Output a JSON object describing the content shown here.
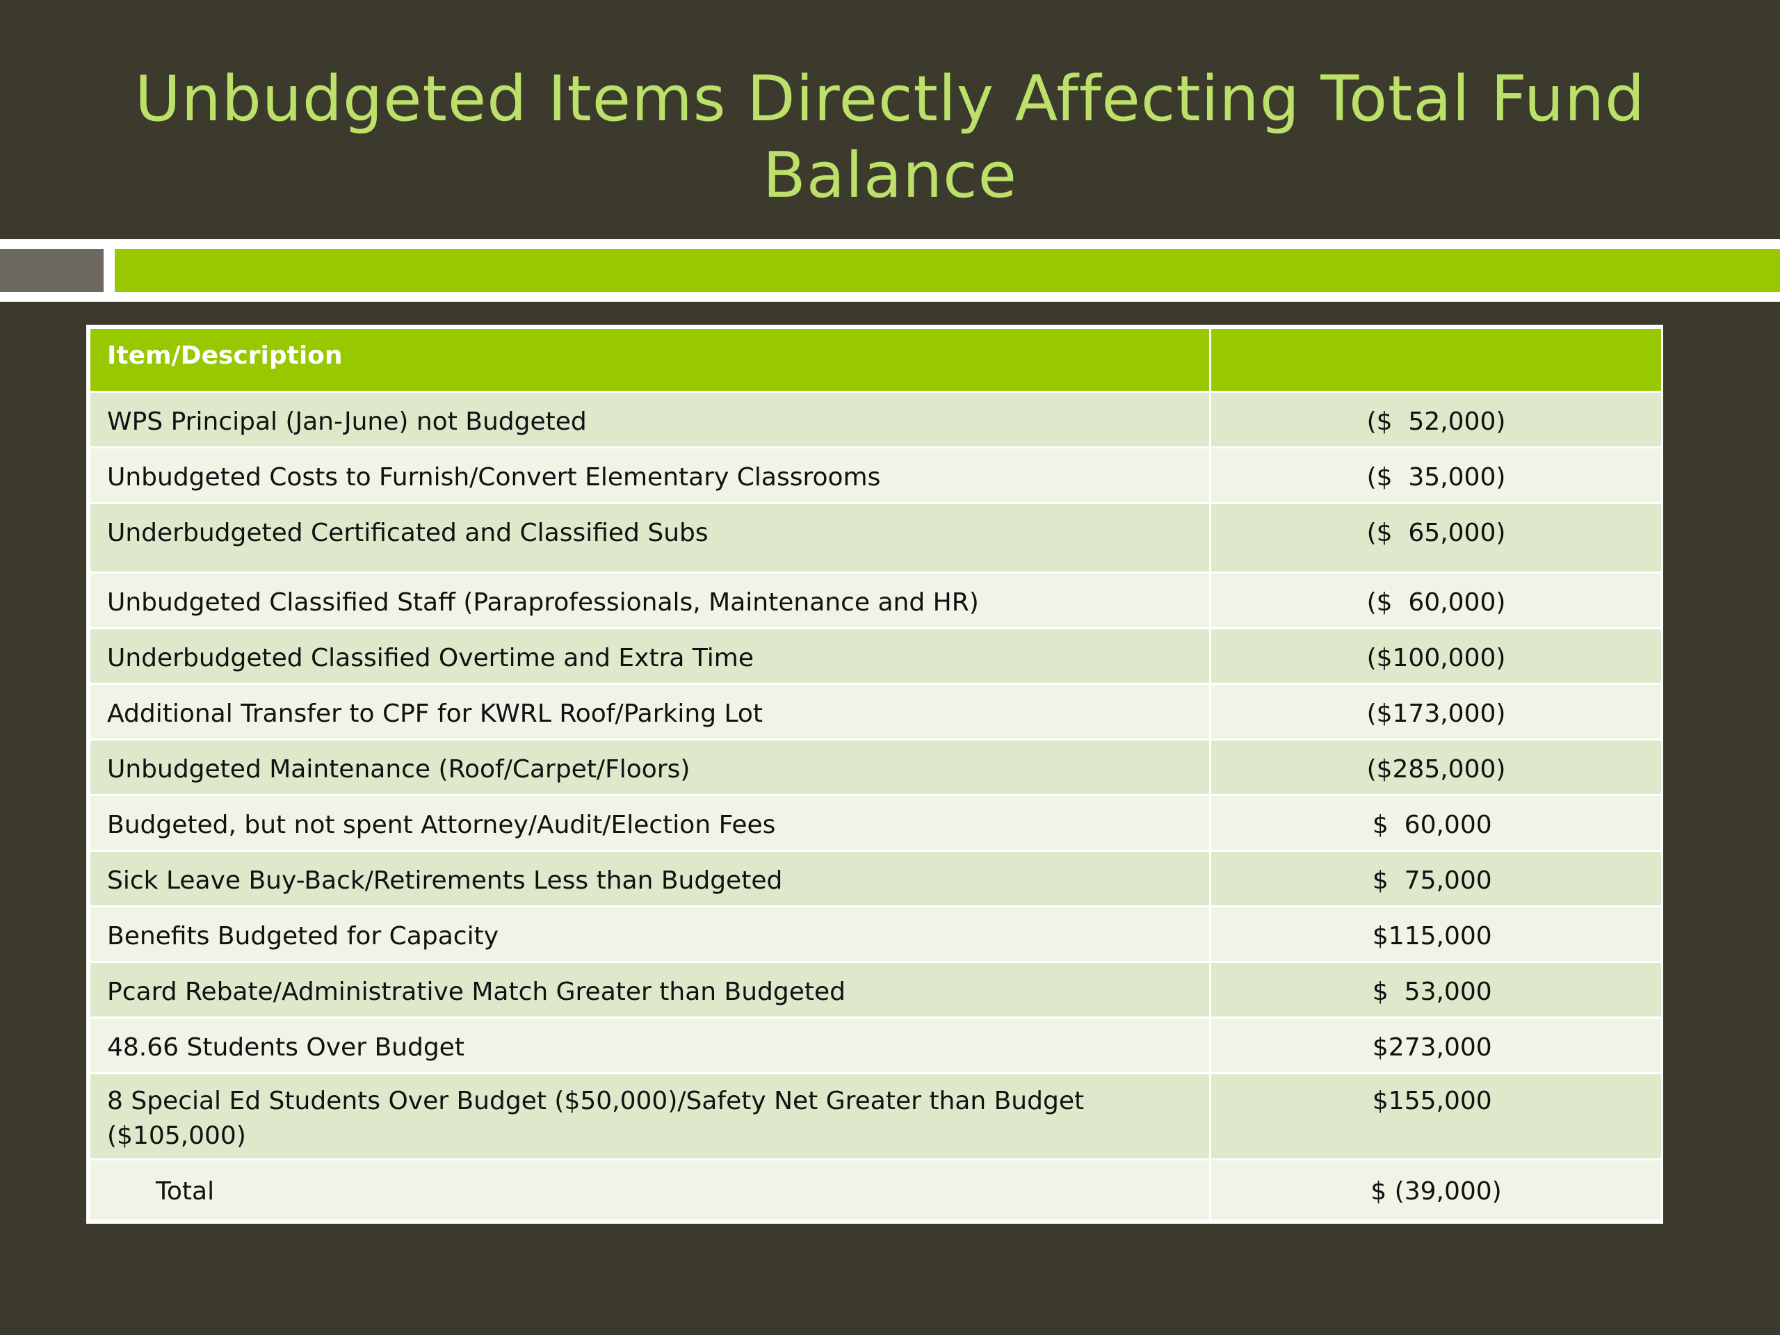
{
  "title": "Unbudgeted Items Directly Affecting Total Fund Balance",
  "table": {
    "headers": [
      "Item/Description",
      ""
    ],
    "rows": [
      {
        "desc": "WPS Principal (Jan-June) not Budgeted",
        "amount": "($  52,000)"
      },
      {
        "desc": "Unbudgeted Costs to Furnish/Convert Elementary Classrooms",
        "amount": "($  35,000)"
      },
      {
        "desc": "Underbudgeted Certificated and Classified Subs",
        "amount": "($  65,000)"
      },
      {
        "desc": "Unbudgeted Classified Staff (Paraprofessionals, Maintenance and HR)",
        "amount": "($  60,000)"
      },
      {
        "desc": "Underbudgeted Classified Overtime and Extra Time",
        "amount": "($100,000)"
      },
      {
        "desc": "Additional Transfer to CPF for KWRL Roof/Parking Lot",
        "amount": "($173,000)"
      },
      {
        "desc": "Unbudgeted Maintenance (Roof/Carpet/Floors)",
        "amount": "($285,000)"
      },
      {
        "desc": "Budgeted, but not spent Attorney/Audit/Election Fees",
        "amount": "$  60,000 "
      },
      {
        "desc": "Sick Leave Buy-Back/Retirements Less than Budgeted",
        "amount": "$  75,000 "
      },
      {
        "desc": "Benefits Budgeted for Capacity",
        "amount": "$115,000 "
      },
      {
        "desc": "Pcard Rebate/Administrative Match Greater than Budgeted",
        "amount": "$  53,000 "
      },
      {
        "desc": "48.66 Students Over Budget",
        "amount": "$273,000 "
      },
      {
        "desc": "8 Special Ed Students Over Budget ($50,000)/Safety Net Greater than Budget ($105,000)",
        "amount": "$155,000 "
      },
      {
        "desc": "Total",
        "amount": "$ (39,000)"
      }
    ]
  }
}
